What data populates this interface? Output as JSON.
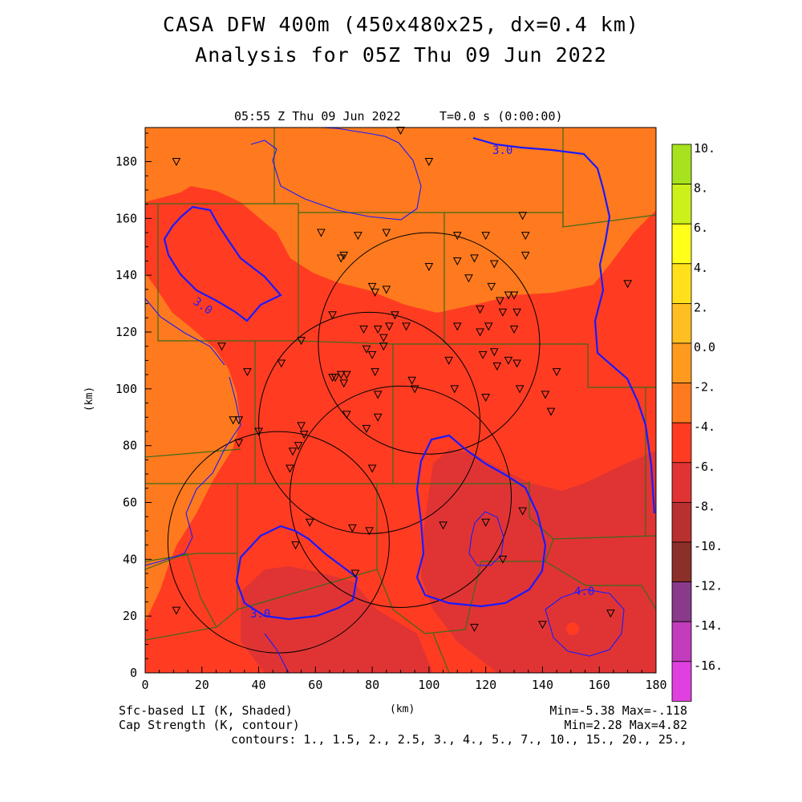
{
  "title": {
    "line1": "CASA DFW 400m (450x480x25, dx=0.4 km)",
    "line2": "Analysis for 05Z Thu 09 Jun 2022"
  },
  "subtitle": {
    "time": "05:55 Z Thu 09 Jun 2022",
    "elapsed": "T=0.0 s (0:00:00)"
  },
  "axes": {
    "x_label": "(km)",
    "y_label": "(km)",
    "x_ticks": [
      "0",
      "20",
      "40",
      "60",
      "80",
      "100",
      "120",
      "140",
      "160",
      "180"
    ],
    "y_ticks": [
      "0",
      "20",
      "40",
      "60",
      "80",
      "100",
      "120",
      "140",
      "160",
      "180"
    ],
    "x_range": [
      0,
      180
    ],
    "y_range": [
      0,
      192
    ]
  },
  "colorbar": {
    "labels": [
      "10.",
      "8.",
      "6.",
      "4.",
      "2.",
      "0.0",
      "-2.",
      "-4.",
      "-6.",
      "-8.",
      "-10.",
      "-12.",
      "-14.",
      "-16."
    ],
    "colors": [
      "#a6e21e",
      "#ccf01a",
      "#ffff1a",
      "#ffe01a",
      "#ffbe22",
      "#ff9a1e",
      "#ff7a1e",
      "#ff3c22",
      "#e03434",
      "#b83030",
      "#8a3028",
      "#8a3a8a",
      "#c23cbe",
      "#e040e0"
    ]
  },
  "footer": {
    "left1": "Sfc-based LI (K, Shaded)",
    "left2": "Cap Strength (K, contour)",
    "center": "(km)",
    "right1": "Min=-5.38 Max=-.118",
    "right2": "Min=2.28 Max=4.82",
    "contours": "contours: 1., 1.5, 2., 2.5, 3., 4., 5., 7., 10., 15., 20., 25.,"
  },
  "contour_labels": [
    "3.0",
    "3.0",
    "3.0",
    "4.0"
  ],
  "map_data": {
    "field_colors": {
      "li_m2_to_0": "#ff7a1e",
      "li_m4_to_m2": "#ff3c22",
      "li_m6_to_m4": "#e03434",
      "cap_contour": "#1a1aff",
      "county_lines": "#3a6a1a",
      "stations": "#000000"
    },
    "radars": [
      {
        "x": 100,
        "y": 116,
        "r": 39
      },
      {
        "x": 79,
        "y": 88,
        "r": 39
      },
      {
        "x": 90,
        "y": 62,
        "r": 39
      },
      {
        "x": 47,
        "y": 46,
        "r": 39
      }
    ],
    "stations": [
      [
        11,
        180
      ],
      [
        90,
        191
      ],
      [
        100,
        180
      ],
      [
        62,
        155
      ],
      [
        75,
        154
      ],
      [
        70,
        147
      ],
      [
        69,
        146
      ],
      [
        85,
        155
      ],
      [
        110,
        154
      ],
      [
        120,
        154
      ],
      [
        133,
        161
      ],
      [
        134,
        154
      ],
      [
        134,
        147
      ],
      [
        110,
        145
      ],
      [
        116,
        146
      ],
      [
        123,
        144
      ],
      [
        100,
        143
      ],
      [
        114,
        139
      ],
      [
        122,
        136
      ],
      [
        80,
        136
      ],
      [
        81,
        134
      ],
      [
        85,
        135
      ],
      [
        118,
        128
      ],
      [
        128,
        133
      ],
      [
        125,
        131
      ],
      [
        130,
        133
      ],
      [
        126,
        127
      ],
      [
        131,
        127
      ],
      [
        88,
        126
      ],
      [
        66,
        126
      ],
      [
        86,
        122
      ],
      [
        92,
        122
      ],
      [
        77,
        121
      ],
      [
        82,
        121
      ],
      [
        110,
        122
      ],
      [
        118,
        120
      ],
      [
        121,
        122
      ],
      [
        130,
        121
      ],
      [
        84,
        118
      ],
      [
        84,
        115
      ],
      [
        27,
        115
      ],
      [
        78,
        114
      ],
      [
        80,
        112
      ],
      [
        55,
        117
      ],
      [
        107,
        110
      ],
      [
        119,
        112
      ],
      [
        123,
        113
      ],
      [
        128,
        110
      ],
      [
        124,
        108
      ],
      [
        131,
        109
      ],
      [
        36,
        106
      ],
      [
        48,
        109
      ],
      [
        66,
        104
      ],
      [
        67,
        104
      ],
      [
        69,
        105
      ],
      [
        71,
        105
      ],
      [
        70,
        102
      ],
      [
        81,
        106
      ],
      [
        145,
        106
      ],
      [
        94,
        103
      ],
      [
        95,
        100
      ],
      [
        82,
        98
      ],
      [
        109,
        100
      ],
      [
        120,
        97
      ],
      [
        132,
        100
      ],
      [
        141,
        98
      ],
      [
        143,
        92
      ],
      [
        71,
        91
      ],
      [
        82,
        90
      ],
      [
        31,
        89
      ],
      [
        33,
        89
      ],
      [
        55,
        87
      ],
      [
        78,
        86
      ],
      [
        40,
        85
      ],
      [
        33,
        81
      ],
      [
        54,
        80
      ],
      [
        52,
        78
      ],
      [
        56,
        84
      ],
      [
        51,
        72
      ],
      [
        80,
        72
      ],
      [
        133,
        57
      ],
      [
        73,
        51
      ],
      [
        79,
        50
      ],
      [
        58,
        53
      ],
      [
        105,
        52
      ],
      [
        120,
        53
      ],
      [
        126,
        40
      ],
      [
        53,
        45
      ],
      [
        74,
        35
      ],
      [
        11,
        22
      ],
      [
        116,
        16
      ],
      [
        140,
        17
      ],
      [
        164,
        21
      ],
      [
        170,
        137
      ]
    ]
  }
}
